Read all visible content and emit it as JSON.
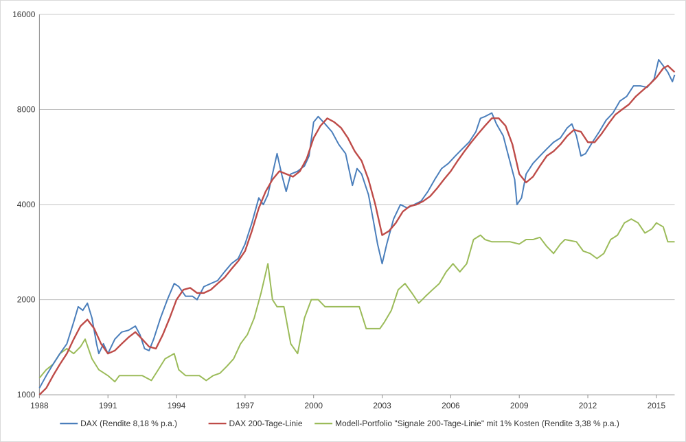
{
  "chart_data": {
    "type": "line",
    "title": "",
    "xlabel": "",
    "ylabel": "",
    "y_scale": "log2",
    "ylim": [
      1000,
      16000
    ],
    "xlim": [
      1988,
      2015.8
    ],
    "grid": "horizontal",
    "legend_position": "bottom",
    "y_ticks": [
      1000,
      2000,
      4000,
      8000,
      16000
    ],
    "x_ticks": [
      1988,
      1991,
      1994,
      1997,
      2000,
      2003,
      2006,
      2009,
      2012,
      2015
    ],
    "series": [
      {
        "name": "DAX (Rendite 8,18 % p.a.)",
        "color": "#4a7ebb",
        "x": [
          1988.0,
          1988.3,
          1988.6,
          1988.9,
          1989.2,
          1989.5,
          1989.7,
          1989.9,
          1990.1,
          1990.3,
          1990.5,
          1990.6,
          1990.8,
          1991.0,
          1991.3,
          1991.6,
          1991.9,
          1992.2,
          1992.4,
          1992.6,
          1992.8,
          1993.0,
          1993.3,
          1993.6,
          1993.9,
          1994.1,
          1994.4,
          1994.7,
          1994.9,
          1995.2,
          1995.5,
          1995.8,
          1996.1,
          1996.4,
          1996.7,
          1997.0,
          1997.3,
          1997.6,
          1997.8,
          1998.0,
          1998.2,
          1998.4,
          1998.6,
          1998.8,
          1999.0,
          1999.3,
          1999.6,
          1999.8,
          2000.0,
          2000.2,
          2000.5,
          2000.8,
          2001.1,
          2001.4,
          2001.7,
          2001.9,
          2002.1,
          2002.4,
          2002.6,
          2002.8,
          2003.0,
          2003.2,
          2003.5,
          2003.8,
          2004.1,
          2004.4,
          2004.7,
          2005.0,
          2005.3,
          2005.6,
          2005.9,
          2006.2,
          2006.5,
          2006.8,
          2007.1,
          2007.3,
          2007.5,
          2007.8,
          2008.0,
          2008.3,
          2008.5,
          2008.8,
          2008.9,
          2009.1,
          2009.3,
          2009.6,
          2009.9,
          2010.2,
          2010.5,
          2010.8,
          2011.1,
          2011.3,
          2011.5,
          2011.7,
          2011.9,
          2012.2,
          2012.5,
          2012.8,
          2013.1,
          2013.4,
          2013.7,
          2014.0,
          2014.3,
          2014.6,
          2014.9,
          2015.1,
          2015.3,
          2015.5,
          2015.7,
          2015.8
        ],
        "y": [
          1050,
          1150,
          1250,
          1350,
          1450,
          1700,
          1900,
          1850,
          1950,
          1750,
          1450,
          1350,
          1450,
          1350,
          1500,
          1580,
          1600,
          1650,
          1550,
          1400,
          1380,
          1500,
          1750,
          2000,
          2250,
          2200,
          2050,
          2050,
          2000,
          2200,
          2250,
          2300,
          2450,
          2600,
          2700,
          3000,
          3500,
          4200,
          4000,
          4300,
          5000,
          5800,
          5000,
          4400,
          5000,
          5100,
          5300,
          5700,
          7300,
          7600,
          7200,
          6800,
          6200,
          5800,
          4600,
          5200,
          5000,
          4300,
          3600,
          3000,
          2600,
          3000,
          3600,
          4000,
          3900,
          4000,
          4100,
          4400,
          4800,
          5200,
          5400,
          5700,
          6000,
          6300,
          6800,
          7500,
          7600,
          7800,
          7200,
          6600,
          5800,
          4800,
          4000,
          4200,
          5000,
          5400,
          5700,
          6000,
          6300,
          6500,
          7000,
          7200,
          6600,
          5700,
          5800,
          6300,
          6800,
          7400,
          7800,
          8500,
          8800,
          9500,
          9500,
          9400,
          10000,
          11500,
          11000,
          10500,
          9800,
          10300
        ]
      },
      {
        "name": "DAX 200-Tage-Linie",
        "color": "#be4b48",
        "x": [
          1988.0,
          1988.3,
          1988.6,
          1988.9,
          1989.2,
          1989.5,
          1989.8,
          1990.1,
          1990.4,
          1990.7,
          1991.0,
          1991.3,
          1991.6,
          1991.9,
          1992.2,
          1992.5,
          1992.8,
          1993.1,
          1993.4,
          1993.7,
          1994.0,
          1994.3,
          1994.6,
          1994.9,
          1995.2,
          1995.5,
          1995.8,
          1996.1,
          1996.4,
          1996.7,
          1997.0,
          1997.3,
          1997.6,
          1997.9,
          1998.2,
          1998.5,
          1998.8,
          1999.1,
          1999.4,
          1999.7,
          2000.0,
          2000.3,
          2000.6,
          2000.9,
          2001.2,
          2001.5,
          2001.8,
          2002.1,
          2002.4,
          2002.7,
          2003.0,
          2003.3,
          2003.6,
          2003.9,
          2004.2,
          2004.5,
          2004.8,
          2005.1,
          2005.4,
          2005.7,
          2006.0,
          2006.3,
          2006.6,
          2006.9,
          2007.2,
          2007.5,
          2007.8,
          2008.1,
          2008.4,
          2008.7,
          2009.0,
          2009.3,
          2009.6,
          2009.9,
          2010.2,
          2010.5,
          2010.8,
          2011.1,
          2011.4,
          2011.7,
          2012.0,
          2012.3,
          2012.6,
          2012.9,
          2013.2,
          2013.5,
          2013.8,
          2014.1,
          2014.4,
          2014.7,
          2015.0,
          2015.3,
          2015.5,
          2015.8
        ],
        "y": [
          1000,
          1050,
          1150,
          1250,
          1350,
          1500,
          1650,
          1730,
          1620,
          1450,
          1350,
          1380,
          1450,
          1520,
          1580,
          1500,
          1420,
          1400,
          1550,
          1750,
          2000,
          2150,
          2180,
          2100,
          2100,
          2150,
          2250,
          2350,
          2500,
          2650,
          2850,
          3300,
          3900,
          4400,
          4800,
          5100,
          5000,
          4900,
          5100,
          5600,
          6500,
          7100,
          7500,
          7300,
          7000,
          6500,
          5900,
          5500,
          4800,
          4000,
          3200,
          3300,
          3500,
          3800,
          3950,
          4000,
          4100,
          4250,
          4500,
          4800,
          5100,
          5500,
          5900,
          6300,
          6700,
          7100,
          7500,
          7500,
          7100,
          6200,
          5000,
          4700,
          4900,
          5300,
          5700,
          5900,
          6200,
          6600,
          6900,
          6800,
          6300,
          6300,
          6700,
          7200,
          7700,
          8000,
          8300,
          8800,
          9200,
          9600,
          10100,
          10800,
          11000,
          10500
        ]
      },
      {
        "name": "Modell-Portfolio \"Signale 200-Tage-Linie\" mit 1% Kosten (Rendite 3,38 % p.a.)",
        "color": "#9bbb59",
        "x": [
          1988.0,
          1988.3,
          1988.6,
          1988.9,
          1989.2,
          1989.5,
          1989.8,
          1990.0,
          1990.3,
          1990.6,
          1991.0,
          1991.3,
          1991.5,
          1992.0,
          1992.5,
          1992.9,
          1993.2,
          1993.5,
          1993.9,
          1994.1,
          1994.4,
          1994.6,
          1995.0,
          1995.3,
          1995.6,
          1995.9,
          1996.2,
          1996.5,
          1996.8,
          1997.1,
          1997.4,
          1997.7,
          1998.0,
          1998.2,
          1998.4,
          1998.7,
          1999.0,
          1999.3,
          1999.6,
          1999.9,
          2000.2,
          2000.5,
          2000.8,
          2001.0,
          2001.5,
          2002.0,
          2002.3,
          2002.6,
          2002.9,
          2003.1,
          2003.4,
          2003.7,
          2004.0,
          2004.3,
          2004.6,
          2004.9,
          2005.2,
          2005.5,
          2005.8,
          2006.1,
          2006.4,
          2006.7,
          2007.0,
          2007.3,
          2007.5,
          2007.8,
          2008.2,
          2008.6,
          2009.0,
          2009.3,
          2009.6,
          2009.9,
          2010.2,
          2010.5,
          2010.8,
          2011.0,
          2011.5,
          2011.8,
          2012.1,
          2012.4,
          2012.7,
          2013.0,
          2013.3,
          2013.6,
          2013.9,
          2014.2,
          2014.5,
          2014.8,
          2015.0,
          2015.3,
          2015.5,
          2015.8
        ],
        "y": [
          1130,
          1200,
          1250,
          1350,
          1400,
          1350,
          1420,
          1500,
          1300,
          1200,
          1150,
          1100,
          1150,
          1150,
          1150,
          1110,
          1200,
          1300,
          1350,
          1200,
          1150,
          1150,
          1150,
          1110,
          1150,
          1170,
          1230,
          1300,
          1450,
          1550,
          1750,
          2100,
          2600,
          2000,
          1900,
          1900,
          1450,
          1350,
          1750,
          2000,
          2000,
          1900,
          1900,
          1900,
          1900,
          1900,
          1620,
          1620,
          1620,
          1700,
          1850,
          2150,
          2250,
          2100,
          1950,
          2050,
          2150,
          2250,
          2450,
          2600,
          2450,
          2600,
          3100,
          3200,
          3100,
          3050,
          3050,
          3050,
          3000,
          3100,
          3100,
          3150,
          2950,
          2800,
          3000,
          3100,
          3050,
          2850,
          2800,
          2700,
          2800,
          3100,
          3200,
          3500,
          3600,
          3500,
          3250,
          3350,
          3500,
          3400,
          3050,
          3050
        ]
      }
    ]
  }
}
